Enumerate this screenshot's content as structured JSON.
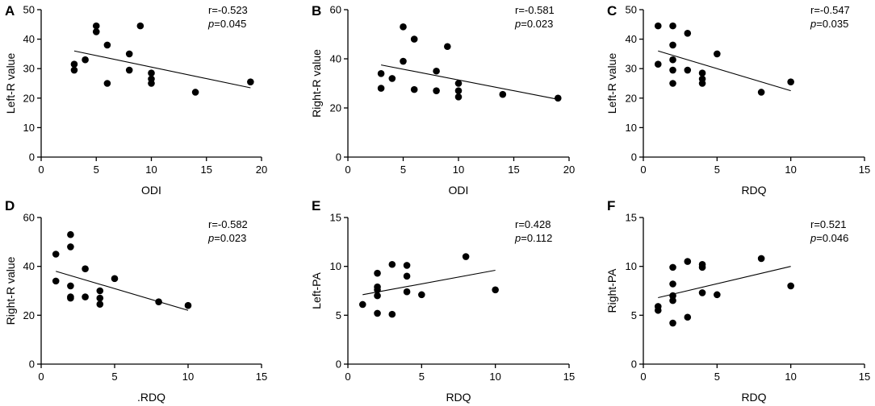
{
  "figure": {
    "panels": [
      {
        "letter": "A",
        "chart_data": {
          "type": "scatter",
          "title": "",
          "xlabel": "ODI",
          "ylabel": "Left-R value",
          "xlim": [
            0,
            20
          ],
          "ylim": [
            0,
            50
          ],
          "xticks": [
            "0",
            "5",
            "10",
            "15",
            "20"
          ],
          "yticks": [
            "0",
            "10",
            "20",
            "30",
            "40",
            "50"
          ],
          "points": [
            [
              3,
              31.5
            ],
            [
              3,
              29.5
            ],
            [
              4,
              33
            ],
            [
              5,
              44.5
            ],
            [
              5,
              42.5
            ],
            [
              6,
              38
            ],
            [
              6,
              25
            ],
            [
              8,
              35
            ],
            [
              8,
              29.5
            ],
            [
              9,
              44.5
            ],
            [
              10,
              28.5
            ],
            [
              10,
              26.5
            ],
            [
              10,
              25
            ],
            [
              14,
              22
            ],
            [
              19,
              25.5
            ]
          ],
          "regression": {
            "x": [
              3,
              19
            ],
            "y": [
              36,
              23.5
            ]
          },
          "stats": {
            "r": "r=-0.523",
            "p_label": "p",
            "p_value": "=0.045"
          }
        }
      },
      {
        "letter": "B",
        "chart_data": {
          "type": "scatter",
          "title": "",
          "xlabel": "ODI",
          "ylabel": "Right-R value",
          "xlim": [
            0,
            20
          ],
          "ylim": [
            0,
            60
          ],
          "xticks": [
            "0",
            "5",
            "10",
            "15",
            "20"
          ],
          "yticks": [
            "0",
            "20",
            "40",
            "60"
          ],
          "points": [
            [
              3,
              34
            ],
            [
              3,
              28
            ],
            [
              4,
              32
            ],
            [
              5,
              53
            ],
            [
              5,
              39
            ],
            [
              6,
              48
            ],
            [
              6,
              27.5
            ],
            [
              8,
              35
            ],
            [
              8,
              27
            ],
            [
              9,
              45
            ],
            [
              10,
              30
            ],
            [
              10,
              27
            ],
            [
              10,
              24.5
            ],
            [
              14,
              25.5
            ],
            [
              19,
              24
            ]
          ],
          "regression": {
            "x": [
              3,
              19
            ],
            "y": [
              37.5,
              23.5
            ]
          },
          "stats": {
            "r": "r=-0.581",
            "p_label": "p",
            "p_value": "=0.023"
          }
        }
      },
      {
        "letter": "C",
        "chart_data": {
          "type": "scatter",
          "title": "",
          "xlabel": "RDQ",
          "ylabel": "Left-R value",
          "xlim": [
            0,
            15
          ],
          "ylim": [
            0,
            50
          ],
          "xticks": [
            "0",
            "5",
            "10",
            "15"
          ],
          "yticks": [
            "0",
            "10",
            "20",
            "30",
            "40",
            "50"
          ],
          "points": [
            [
              1,
              44.5
            ],
            [
              1,
              31.5
            ],
            [
              2,
              44.5
            ],
            [
              2,
              38
            ],
            [
              2,
              33
            ],
            [
              2,
              29.5
            ],
            [
              2,
              25
            ],
            [
              3,
              42
            ],
            [
              3,
              29.5
            ],
            [
              4,
              28.5
            ],
            [
              4,
              26.5
            ],
            [
              4,
              25
            ],
            [
              5,
              35
            ],
            [
              8,
              22
            ],
            [
              10,
              25.5
            ]
          ],
          "regression": {
            "x": [
              1,
              10
            ],
            "y": [
              36,
              22.5
            ]
          },
          "stats": {
            "r": "r=-0.547",
            "p_label": "p",
            "p_value": "=0.035"
          }
        }
      },
      {
        "letter": "D",
        "chart_data": {
          "type": "scatter",
          "title": "",
          "xlabel": ".RDQ",
          "ylabel": "Right-R value",
          "xlim": [
            0,
            15
          ],
          "ylim": [
            0,
            60
          ],
          "xticks": [
            "0",
            "5",
            "10",
            "15"
          ],
          "yticks": [
            "0",
            "20",
            "40",
            "60"
          ],
          "points": [
            [
              1,
              45
            ],
            [
              1,
              34
            ],
            [
              2,
              53
            ],
            [
              2,
              48
            ],
            [
              2,
              32
            ],
            [
              2,
              27.5
            ],
            [
              2,
              27
            ],
            [
              3,
              39
            ],
            [
              3,
              27.5
            ],
            [
              4,
              30
            ],
            [
              4,
              27
            ],
            [
              4,
              24.5
            ],
            [
              5,
              35
            ],
            [
              8,
              25.5
            ],
            [
              10,
              24
            ]
          ],
          "regression": {
            "x": [
              1,
              10
            ],
            "y": [
              38,
              22
            ]
          },
          "stats": {
            "r": "r=-0.582",
            "p_label": "p",
            "p_value": "=0.023"
          }
        }
      },
      {
        "letter": "E",
        "chart_data": {
          "type": "scatter",
          "title": "",
          "xlabel": "RDQ",
          "ylabel": "Left-PA",
          "xlim": [
            0,
            15
          ],
          "ylim": [
            0,
            15
          ],
          "xticks": [
            "0",
            "5",
            "10",
            "15"
          ],
          "yticks": [
            "0",
            "5",
            "10",
            "15"
          ],
          "points": [
            [
              1,
              6.1
            ],
            [
              2,
              9.3
            ],
            [
              2,
              7.9
            ],
            [
              2,
              7.6
            ],
            [
              2,
              7
            ],
            [
              2,
              5.2
            ],
            [
              3,
              10.2
            ],
            [
              3,
              5.1
            ],
            [
              4,
              10.1
            ],
            [
              4,
              9
            ],
            [
              4,
              7.4
            ],
            [
              5,
              7.1
            ],
            [
              8,
              11
            ],
            [
              10,
              7.6
            ]
          ],
          "regression": {
            "x": [
              1,
              10
            ],
            "y": [
              7.1,
              9.6
            ]
          },
          "stats": {
            "r": "r=0.428",
            "p_label": "p",
            "p_value": "=0.112"
          }
        }
      },
      {
        "letter": "F",
        "chart_data": {
          "type": "scatter",
          "title": "",
          "xlabel": "RDQ",
          "ylabel": "Right-PA",
          "xlim": [
            0,
            15
          ],
          "ylim": [
            0,
            15
          ],
          "xticks": [
            "0",
            "5",
            "10",
            "15"
          ],
          "yticks": [
            "0",
            "5",
            "10",
            "15"
          ],
          "points": [
            [
              1,
              5.9
            ],
            [
              1,
              5.5
            ],
            [
              2,
              9.9
            ],
            [
              2,
              8.2
            ],
            [
              2,
              7
            ],
            [
              2,
              6.5
            ],
            [
              2,
              4.2
            ],
            [
              3,
              10.5
            ],
            [
              3,
              4.8
            ],
            [
              4,
              10.2
            ],
            [
              4,
              9.9
            ],
            [
              4,
              7.3
            ],
            [
              5,
              7.1
            ],
            [
              8,
              10.8
            ],
            [
              10,
              8
            ]
          ],
          "regression": {
            "x": [
              1,
              10
            ],
            "y": [
              6.8,
              10
            ]
          },
          "stats": {
            "r": "r=0.521",
            "p_label": "p",
            "p_value": "=0.046"
          }
        }
      }
    ]
  }
}
